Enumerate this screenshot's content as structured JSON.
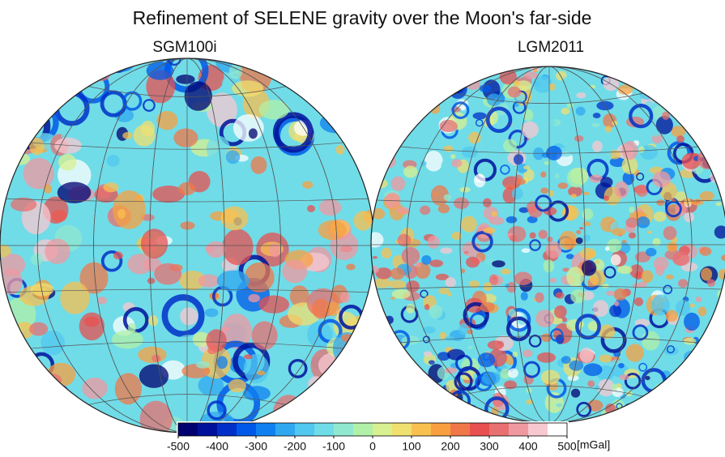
{
  "title": "Refinement of SELENE gravity over the Moon's far-side",
  "panels": [
    {
      "label": "SGM100i"
    },
    {
      "label": "LGM2011"
    }
  ],
  "colorbar": {
    "lim": [
      -500,
      500
    ],
    "ticks": [
      -500,
      -400,
      -300,
      -200,
      -100,
      0,
      100,
      200,
      300,
      400,
      500
    ],
    "unit": "[mGal]",
    "colors": [
      "#000070",
      "#00109a",
      "#0030c8",
      "#0058e8",
      "#1080f0",
      "#30a8f0",
      "#50c8f0",
      "#70dce8",
      "#90e8d0",
      "#b0f0a8",
      "#d8f090",
      "#f0e070",
      "#f8c050",
      "#f8a040",
      "#f07848",
      "#e85050",
      "#e87070",
      "#f098a0",
      "#f8c8d0",
      "#ffffff"
    ]
  }
}
